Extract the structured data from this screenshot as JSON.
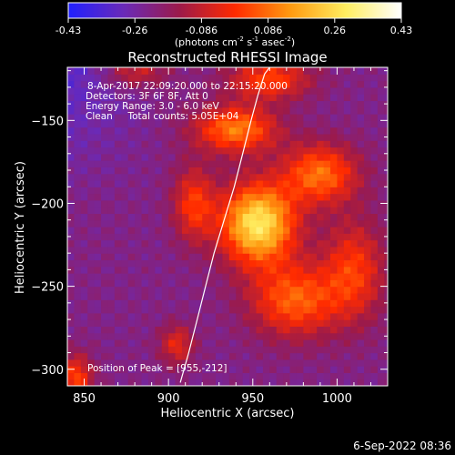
{
  "chart_data": {
    "type": "heatmap",
    "title": "Reconstructed RHESSI Image",
    "xlabel": "Heliocentric X (arcsec)",
    "ylabel": "Heliocentric Y (arcsec)",
    "xlim": [
      840,
      1030
    ],
    "ylim": [
      -310,
      -118
    ],
    "xticks": [
      850,
      900,
      950,
      1000
    ],
    "yticks": [
      -150,
      -200,
      -250,
      -300
    ],
    "colorbar": {
      "min": -0.43,
      "max": 0.43,
      "ticks": [
        "-0.43",
        "-0.26",
        "-0.086",
        "0.086",
        "0.26",
        "0.43"
      ],
      "units_prefix": "(photons cm",
      "units_exp1": "-2",
      "units_mid": " s",
      "units_exp2": "-1",
      "units_mid2": " asec",
      "units_exp3": "-2",
      "units_suffix": ")",
      "colors": [
        "#2020ff",
        "#6a2ab8",
        "#9c1a4a",
        "#ff2a00",
        "#ff9a10",
        "#ffee60",
        "#ffffff"
      ]
    },
    "annotations": {
      "time_range": "8-Apr-2017 22:09:20.000 to 22:15:20.000",
      "detectors": "Detectors: 3F 6F 8F, Att 0",
      "energy": "Energy Range: 3.0 - 6.0 keV",
      "clean": "Clean     Total counts: 5.05E+04",
      "peak": "Position of Peak = [955,-212]"
    },
    "peak_position": [
      955,
      -212
    ],
    "limb_curve": {
      "x": [
        907,
        912,
        917,
        922,
        927,
        933,
        939,
        944,
        949,
        953,
        957,
        960
      ],
      "y": [
        -308,
        -290,
        -270,
        -250,
        -230,
        -210,
        -190,
        -170,
        -150,
        -135,
        -122,
        -118
      ]
    },
    "hot_blobs": [
      {
        "x": 953,
        "y": -212,
        "sx": 22,
        "sy": 24,
        "v": 0.44
      },
      {
        "x": 990,
        "y": -182,
        "sx": 22,
        "sy": 18,
        "v": 0.24
      },
      {
        "x": 940,
        "y": -155,
        "sx": 24,
        "sy": 14,
        "v": 0.26
      },
      {
        "x": 975,
        "y": -258,
        "sx": 26,
        "sy": 22,
        "v": 0.22
      },
      {
        "x": 1010,
        "y": -240,
        "sx": 18,
        "sy": 30,
        "v": 0.16
      },
      {
        "x": 960,
        "y": -125,
        "sx": 24,
        "sy": 12,
        "v": 0.18
      },
      {
        "x": 905,
        "y": -285,
        "sx": 10,
        "sy": 12,
        "v": 0.12
      },
      {
        "x": 915,
        "y": -200,
        "sx": 12,
        "sy": 22,
        "v": 0.16
      },
      {
        "x": 845,
        "y": -305,
        "sx": 10,
        "sy": 14,
        "v": 0.18
      },
      {
        "x": 880,
        "y": -120,
        "sx": 18,
        "sy": 10,
        "v": 0.1
      }
    ],
    "background": {
      "level": -0.22
    }
  },
  "footer": {
    "date": "6-Sep-2022 08:36"
  }
}
